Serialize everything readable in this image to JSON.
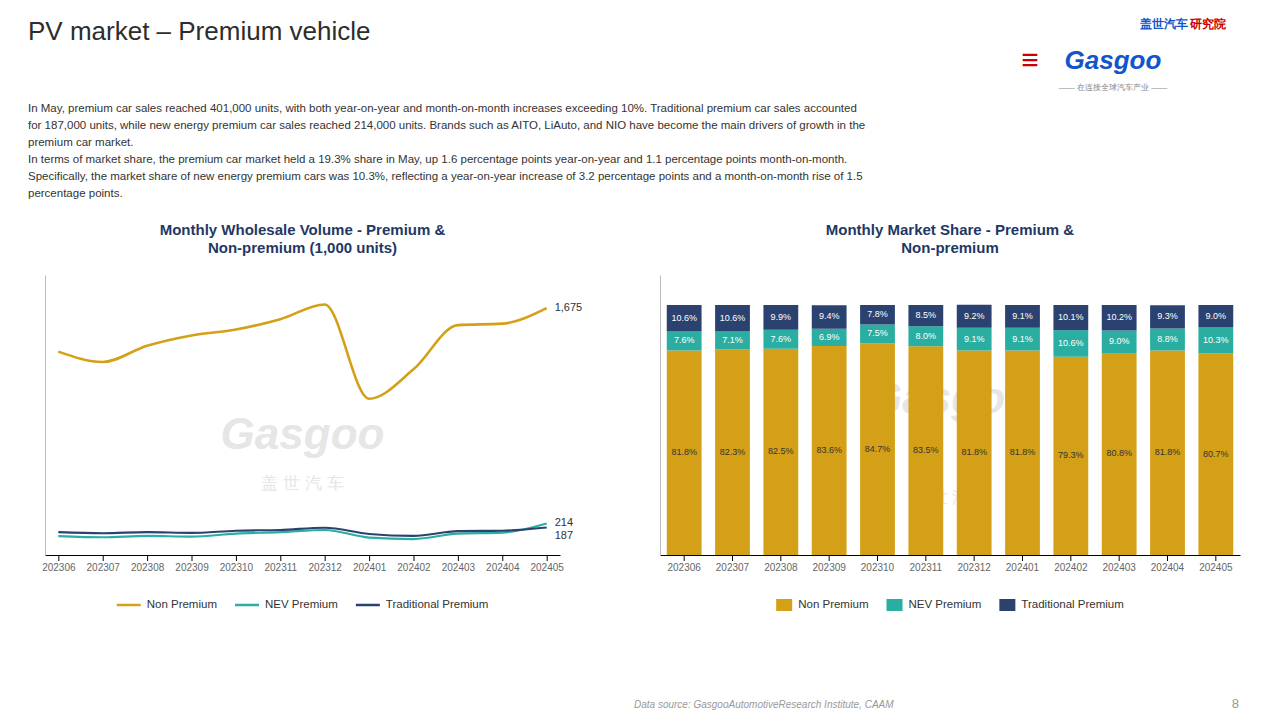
{
  "title": "PV market – Premium vehicle",
  "subtitle": [
    "In May, premium car sales reached 401,000 units, with both year-on-year and month-on-month increases exceeding 10%. Traditional premium car sales accounted",
    "for 187,000 units, while new energy premium car sales reached 214,000 units. Brands such as AITO, LiAuto, and NIO have become the main drivers of growth in the",
    "premium car market.",
    "In terms of market share, the premium car market held a 19.3% share in May, up 1.6 percentage points year-on-year and 1.1 percentage points month-on-month.",
    "Specifically,  the market share of new energy premium cars was 10.3%, reflecting a year-on-year increase of 3.2 percentage points and a month-on-month rise of 1.5",
    "percentage points."
  ],
  "annotations": [
    "盖世汽车",
    "研究院",
    "Gasgoo",
    "≡",
    "—— 在连接全球汽车产业 ——",
    "Data source: GasgooAutomotiveResearch Institute, CAAM",
    "8"
  ],
  "chart_data": [
    {
      "type": "line",
      "title": "Monthly Wholesale Volume - Premium &\nNon-premium (1,000 units)",
      "categories": [
        "202306",
        "202307",
        "202308",
        "202309",
        "202310",
        "202311",
        "202312",
        "202401",
        "202402",
        "202403",
        "202404",
        "202405"
      ],
      "series": [
        {
          "name": "Non Premium",
          "color": "#D4A017",
          "values": [
            1380,
            1310,
            1420,
            1490,
            1530,
            1600,
            1700,
            1060,
            1260,
            1560,
            1570,
            1675
          ],
          "value_labels": [
            null,
            null,
            null,
            null,
            null,
            null,
            null,
            null,
            null,
            null,
            null,
            "1,675"
          ]
        },
        {
          "name": "NEV Premium",
          "color": "#2AAEA1",
          "values": [
            128,
            120,
            130,
            125,
            145,
            155,
            170,
            118,
            108,
            145,
            152,
            214
          ],
          "value_labels": [
            null,
            null,
            null,
            null,
            null,
            null,
            null,
            null,
            null,
            null,
            null,
            "214"
          ]
        },
        {
          "name": "Traditional Premium",
          "color": "#2B4270",
          "values": [
            155,
            148,
            155,
            150,
            165,
            170,
            185,
            143,
            130,
            162,
            165,
            187
          ],
          "value_labels": [
            null,
            null,
            null,
            null,
            null,
            null,
            null,
            null,
            null,
            null,
            null,
            "187"
          ]
        }
      ],
      "ylim": [
        0,
        1900
      ],
      "tick_labels": "x",
      "grid": false,
      "legend": "bottom",
      "annotations": [
        "Gasgoo",
        "盖 世 汽 车"
      ]
    },
    {
      "type": "bar",
      "title": "Monthly Market Share - Premium &\nNon-premium",
      "categories": [
        "202306",
        "202307",
        "202308",
        "202309",
        "202310",
        "202311",
        "202312",
        "202401",
        "202402",
        "202403",
        "202404",
        "202405"
      ],
      "stacked": true,
      "data_labels": true,
      "series": [
        {
          "name": "Non Premium",
          "color": "#D4A017",
          "values": [
            81.8,
            82.3,
            82.5,
            83.6,
            84.7,
            83.5,
            81.8,
            81.8,
            79.3,
            80.8,
            81.8,
            80.7
          ],
          "value_labels": [
            "81.8%",
            "82.3%",
            "82.5%",
            "83.6%",
            "84.7%",
            "83.5%",
            "81.8%",
            "81.8%",
            "79.3%",
            "80.8%",
            "81.8%",
            "80.7%"
          ]
        },
        {
          "name": "NEV Premium",
          "color": "#2AAEA1",
          "values": [
            7.6,
            7.1,
            7.6,
            6.9,
            7.5,
            8.0,
            9.1,
            9.1,
            10.6,
            9.0,
            8.8,
            10.3
          ],
          "value_labels": [
            "7.6%",
            "7.1%",
            "7.6%",
            "6.9%",
            "7.5%",
            "8.0%",
            "9.1%",
            "9.1%",
            "10.6%",
            "9.0%",
            "8.8%",
            "10.3%"
          ]
        },
        {
          "name": "Traditional Premium",
          "color": "#2B4270",
          "values": [
            10.6,
            10.6,
            9.9,
            9.4,
            7.8,
            8.5,
            9.2,
            9.1,
            10.1,
            10.2,
            9.3,
            9.0
          ],
          "value_labels": [
            "10.6%",
            "10.6%",
            "9.9%",
            "9.4%",
            "7.8%",
            "8.5%",
            "9.2%",
            "9.1%",
            "10.1%",
            "10.2%",
            "9.3%",
            "9.0%"
          ]
        }
      ],
      "ylim": [
        0,
        112
      ],
      "tick_labels": "x",
      "grid": false,
      "legend": "bottom",
      "annotations": [
        "Gasgoo",
        "盖 世 汽 车"
      ]
    }
  ]
}
